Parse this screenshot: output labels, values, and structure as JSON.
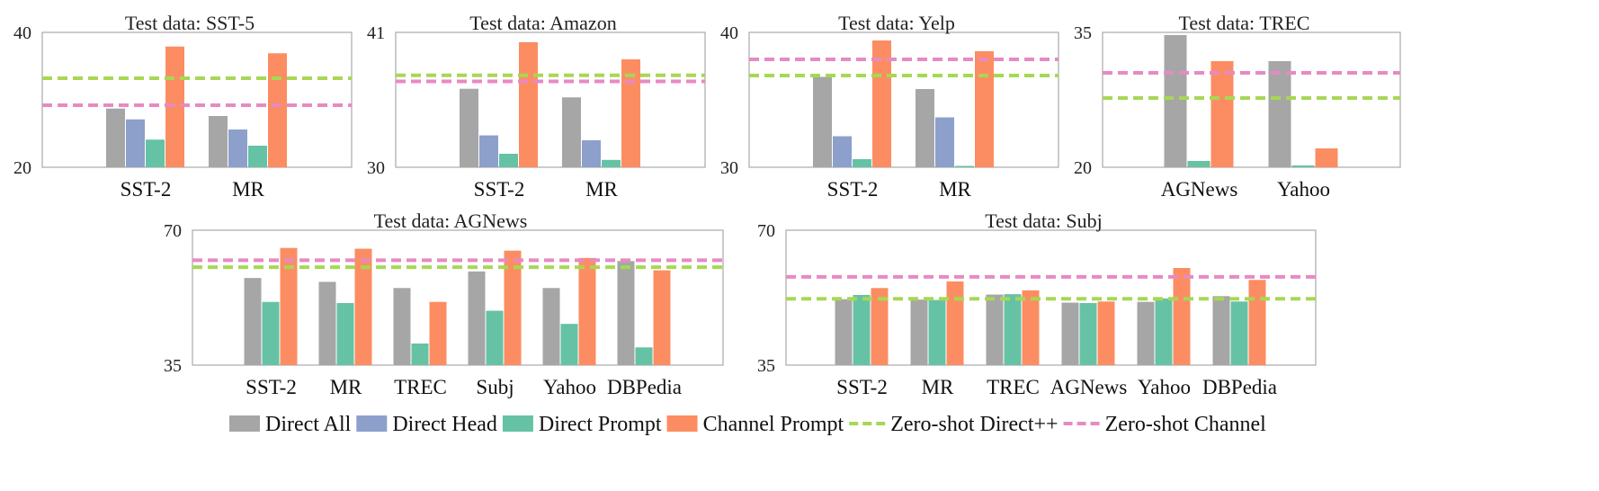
{
  "legend": [
    {
      "key": "direct_all",
      "label": "Direct All",
      "kind": "bar",
      "color": "#a6a6a6"
    },
    {
      "key": "direct_head",
      "label": "Direct Head",
      "kind": "bar",
      "color": "#8da0cb"
    },
    {
      "key": "direct_prompt",
      "label": "Direct Prompt",
      "kind": "bar",
      "color": "#66c2a5"
    },
    {
      "key": "channel_prompt",
      "label": "Channel Prompt",
      "kind": "bar",
      "color": "#fc8d62"
    },
    {
      "key": "zs_direct",
      "label": "Zero-shot Direct++",
      "kind": "dash",
      "color": "#a6d854"
    },
    {
      "key": "zs_channel",
      "label": "Zero-shot Channel",
      "kind": "dash",
      "color": "#e78ac3"
    }
  ],
  "chart_data": [
    {
      "type": "bar",
      "title": "Test data: SST-5",
      "ylim": [
        20,
        40
      ],
      "yticks": [
        20,
        40
      ],
      "categories": [
        "SST-2",
        "MR"
      ],
      "series": [
        {
          "key": "direct_all",
          "values": [
            28.7,
            27.6
          ]
        },
        {
          "key": "direct_head",
          "values": [
            27.1,
            25.6
          ]
        },
        {
          "key": "direct_prompt",
          "values": [
            24.1,
            23.2
          ]
        },
        {
          "key": "channel_prompt",
          "values": [
            37.9,
            36.9
          ]
        }
      ],
      "refs": [
        {
          "key": "zs_direct",
          "value": 33.2
        },
        {
          "key": "zs_channel",
          "value": 29.2
        }
      ]
    },
    {
      "type": "bar",
      "title": "Test data: Amazon",
      "ylim": [
        30,
        41
      ],
      "yticks": [
        30,
        41
      ],
      "categories": [
        "SST-2",
        "MR"
      ],
      "series": [
        {
          "key": "direct_all",
          "values": [
            36.4,
            35.7
          ]
        },
        {
          "key": "direct_head",
          "values": [
            32.6,
            32.2
          ]
        },
        {
          "key": "direct_prompt",
          "values": [
            31.1,
            30.6
          ]
        },
        {
          "key": "channel_prompt",
          "values": [
            40.2,
            38.8
          ]
        }
      ],
      "refs": [
        {
          "key": "zs_direct",
          "value": 37.5
        },
        {
          "key": "zs_channel",
          "value": 37.0
        }
      ]
    },
    {
      "type": "bar",
      "title": "Test data: Yelp",
      "ylim": [
        30,
        40
      ],
      "yticks": [
        30,
        40
      ],
      "categories": [
        "SST-2",
        "MR"
      ],
      "series": [
        {
          "key": "direct_all",
          "values": [
            36.7,
            35.8
          ]
        },
        {
          "key": "direct_head",
          "values": [
            32.3,
            33.7
          ]
        },
        {
          "key": "direct_prompt",
          "values": [
            30.6,
            30.1
          ]
        },
        {
          "key": "channel_prompt",
          "values": [
            39.4,
            38.6
          ]
        }
      ],
      "refs": [
        {
          "key": "zs_direct",
          "value": 36.8
        },
        {
          "key": "zs_channel",
          "value": 38.0
        }
      ]
    },
    {
      "type": "bar",
      "title": "Test data: TREC",
      "ylim": [
        20,
        35
      ],
      "yticks": [
        20,
        35
      ],
      "categories": [
        "AGNews",
        "Yahoo"
      ],
      "series": [
        {
          "key": "direct_all",
          "values": [
            34.7,
            31.8
          ]
        },
        {
          "key": "direct_prompt",
          "values": [
            20.7,
            20.2
          ]
        },
        {
          "key": "channel_prompt",
          "values": [
            31.8,
            22.1
          ]
        }
      ],
      "refs": [
        {
          "key": "zs_direct",
          "value": 27.7
        },
        {
          "key": "zs_channel",
          "value": 30.5
        }
      ]
    },
    {
      "type": "bar",
      "title": "Test data: AGNews",
      "ylim": [
        35,
        70
      ],
      "yticks": [
        35,
        70
      ],
      "categories": [
        "SST-2",
        "MR",
        "TREC",
        "Subj",
        "Yahoo",
        "DBPedia"
      ],
      "series": [
        {
          "key": "direct_all",
          "values": [
            57.6,
            56.6,
            55.0,
            59.3,
            55.0,
            62.0
          ]
        },
        {
          "key": "direct_prompt",
          "values": [
            51.4,
            51.1,
            40.6,
            49.1,
            45.7,
            39.6
          ]
        },
        {
          "key": "channel_prompt",
          "values": [
            65.4,
            65.2,
            51.4,
            64.7,
            62.8,
            59.6
          ]
        }
      ],
      "refs": [
        {
          "key": "zs_direct",
          "value": 60.4
        },
        {
          "key": "zs_channel",
          "value": 62.2
        }
      ]
    },
    {
      "type": "bar",
      "title": "Test data: Subj",
      "ylim": [
        35,
        70
      ],
      "yticks": [
        35,
        70
      ],
      "categories": [
        "SST-2",
        "MR",
        "TREC",
        "AGNews",
        "Yahoo",
        "DBPedia"
      ],
      "series": [
        {
          "key": "direct_all",
          "values": [
            52.1,
            52.0,
            53.3,
            51.2,
            51.4,
            52.9
          ]
        },
        {
          "key": "direct_prompt",
          "values": [
            53.2,
            51.9,
            53.4,
            51.1,
            52.3,
            51.5
          ]
        },
        {
          "key": "channel_prompt",
          "values": [
            55.0,
            56.7,
            54.4,
            51.5,
            60.2,
            57.1
          ]
        }
      ],
      "refs": [
        {
          "key": "zs_direct",
          "value": 52.2
        },
        {
          "key": "zs_channel",
          "value": 57.9
        }
      ]
    }
  ]
}
